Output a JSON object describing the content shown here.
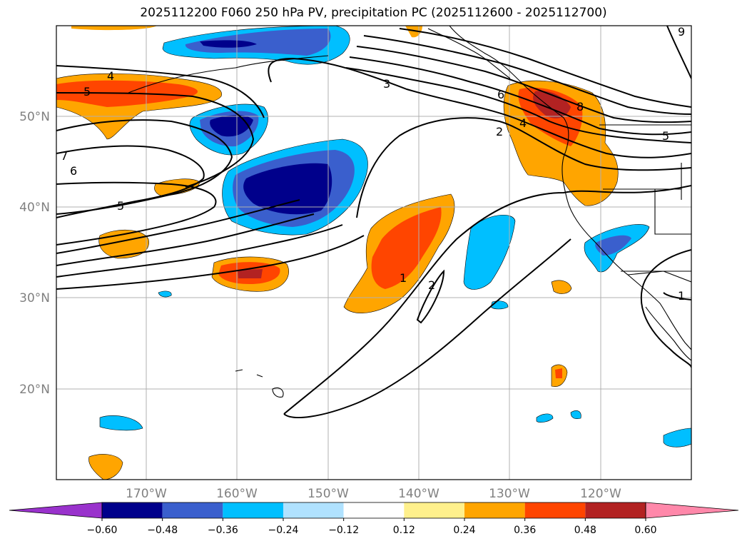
{
  "title": "2025112200 F060 250 hPa PV, precipitation PC (2025112600 - 2025112700)",
  "map": {
    "lat_labels": [
      "50°N",
      "40°N",
      "30°N",
      "20°N"
    ],
    "lon_labels": [
      "170°W",
      "160°W",
      "150°W",
      "140°W",
      "130°W",
      "120°W"
    ],
    "pv_contour_labels": [
      "4",
      "5",
      "3",
      "6",
      "4",
      "2",
      "8",
      "5",
      "7",
      "6",
      "5",
      "1",
      "2",
      "1",
      "9"
    ]
  },
  "colorbar": {
    "ticks": [
      "−0.60",
      "−0.48",
      "−0.36",
      "−0.24",
      "−0.12",
      "0.12",
      "0.24",
      "0.36",
      "0.48",
      "0.60"
    ],
    "colors": [
      "#9932cc",
      "#00008b",
      "#3a5fcd",
      "#00bfff",
      "#b0e2ff",
      "#ffffff",
      "#fff08c",
      "#ffa500",
      "#ff4500",
      "#b22222",
      "#ff88aa"
    ]
  }
}
